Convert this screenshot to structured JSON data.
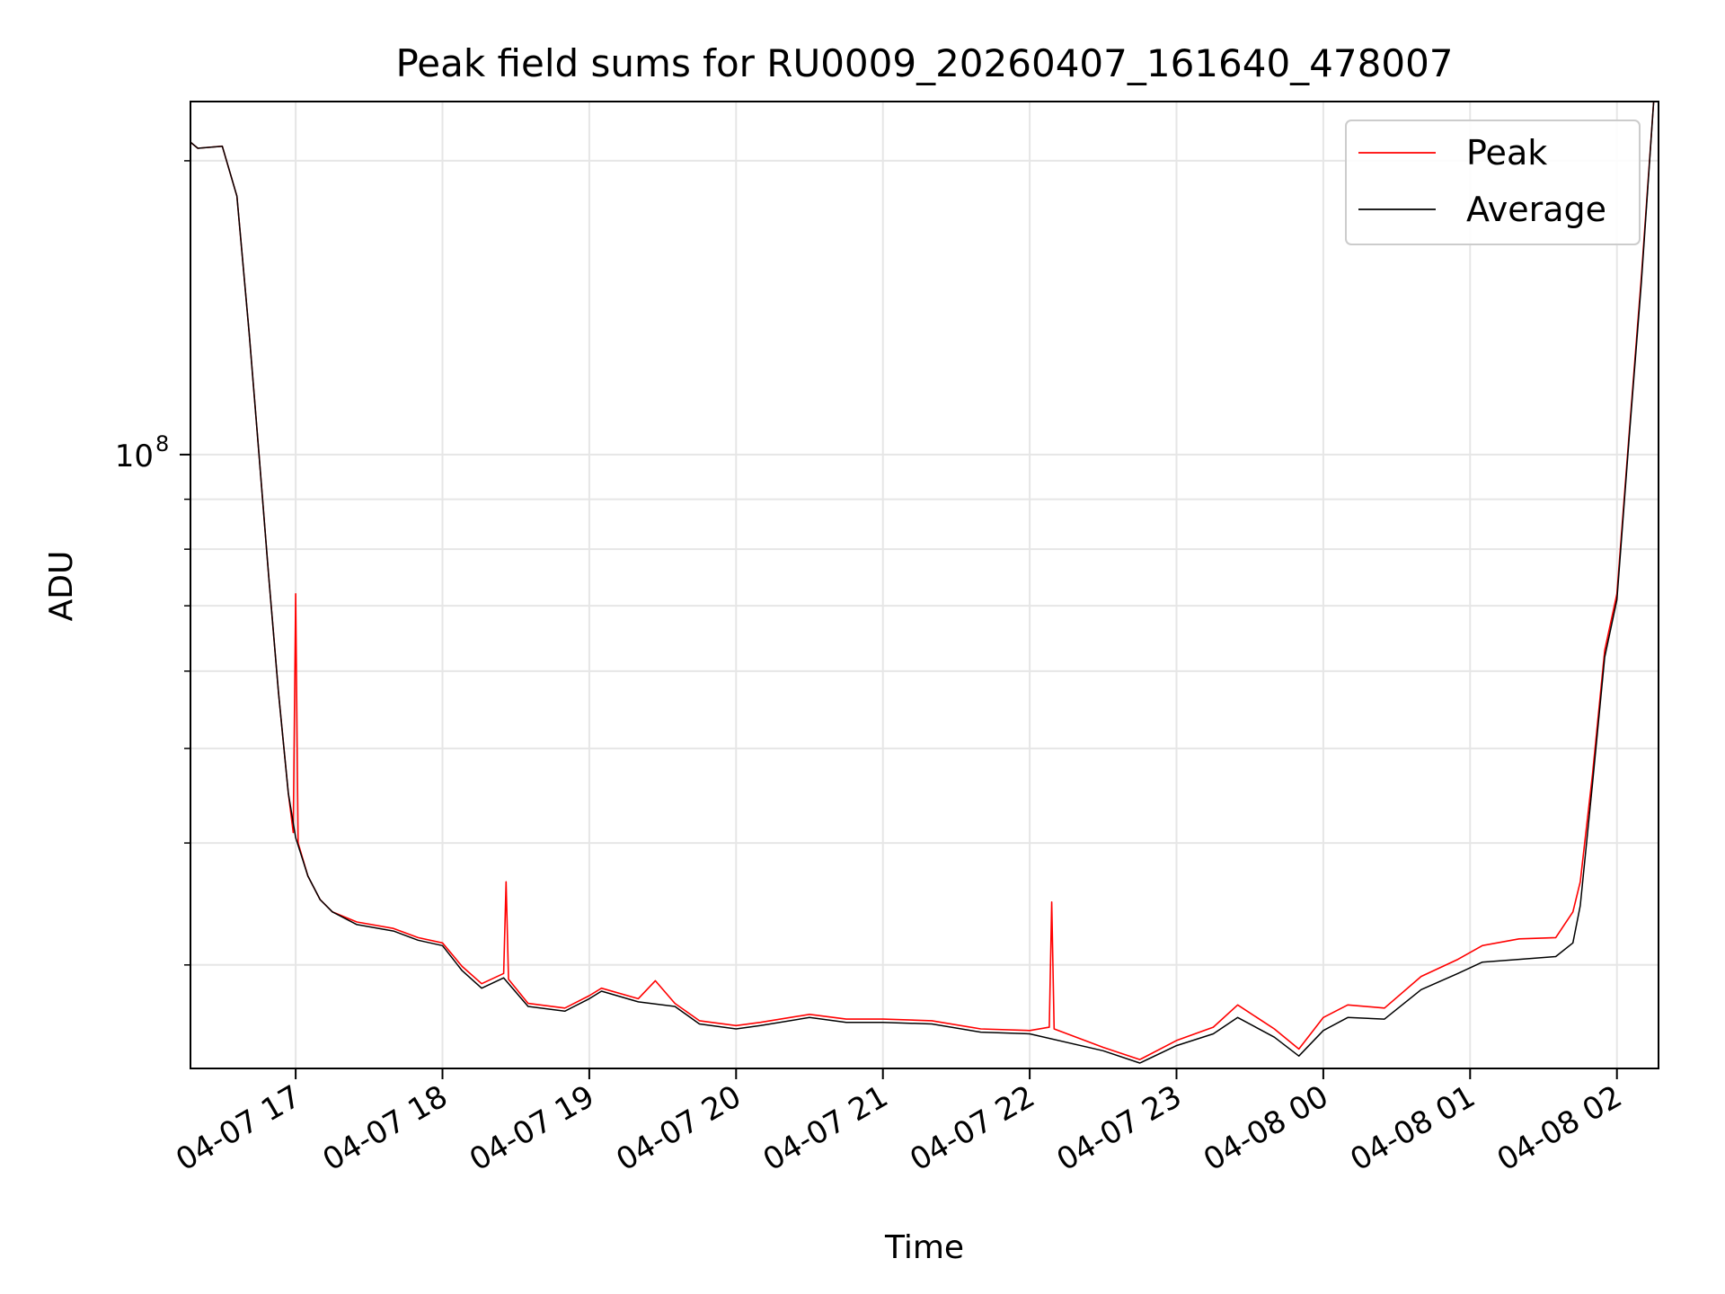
{
  "chart_data": {
    "type": "line",
    "title": "Peak field sums for RU0009_20260407_161640_478007",
    "xlabel": "Time",
    "ylabel": "ADU",
    "yscale": "log",
    "grid": true,
    "legend_placement": "top-right",
    "x_ticks": [
      "04-07 17",
      "04-07 18",
      "04-07 19",
      "04-07 20",
      "04-07 21",
      "04-07 22",
      "04-07 23",
      "04-08 00",
      "04-08 01",
      "04-08 02"
    ],
    "y_tick_labels": [
      {
        "base": "10",
        "exponent": "8"
      }
    ],
    "xlim": [
      "2026-04-07 16:17",
      "2026-04-08 02:17"
    ],
    "ylim": [
      23500000,
      230000000
    ],
    "series": [
      {
        "name": "Peak",
        "color": "#ff0000",
        "points": [
          [
            "2026-04-07 16:17",
            209000000
          ],
          [
            "2026-04-07 16:20",
            206000000
          ],
          [
            "2026-04-07 16:30",
            207000000
          ],
          [
            "2026-04-07 16:36",
            184000000
          ],
          [
            "2026-04-07 16:41",
            133000000
          ],
          [
            "2026-04-07 16:45",
            100000000
          ],
          [
            "2026-04-07 16:49",
            75000000
          ],
          [
            "2026-04-07 16:53",
            57000000
          ],
          [
            "2026-04-07 16:57",
            45000000
          ],
          [
            "2026-04-07 16:59",
            41000000
          ],
          [
            "2026-04-07 17:00",
            72000000
          ],
          [
            "2026-04-07 17:01",
            40000000
          ],
          [
            "2026-04-07 17:05",
            37000000
          ],
          [
            "2026-04-07 17:10",
            35000000
          ],
          [
            "2026-04-07 17:15",
            34000000
          ],
          [
            "2026-04-07 17:25",
            33200000
          ],
          [
            "2026-04-07 17:40",
            32700000
          ],
          [
            "2026-04-07 17:50",
            32000000
          ],
          [
            "2026-04-07 18:00",
            31600000
          ],
          [
            "2026-04-07 18:08",
            29900000
          ],
          [
            "2026-04-07 18:16",
            28700000
          ],
          [
            "2026-04-07 18:25",
            29400000
          ],
          [
            "2026-04-07 18:26",
            36500000
          ],
          [
            "2026-04-07 18:27",
            29000000
          ],
          [
            "2026-04-07 18:35",
            27400000
          ],
          [
            "2026-04-07 18:50",
            27100000
          ],
          [
            "2026-04-07 19:00",
            27900000
          ],
          [
            "2026-04-07 19:05",
            28400000
          ],
          [
            "2026-04-07 19:20",
            27700000
          ],
          [
            "2026-04-07 19:27",
            28900000
          ],
          [
            "2026-04-07 19:35",
            27400000
          ],
          [
            "2026-04-07 19:45",
            26300000
          ],
          [
            "2026-04-07 20:00",
            26000000
          ],
          [
            "2026-04-07 20:10",
            26200000
          ],
          [
            "2026-04-07 20:30",
            26700000
          ],
          [
            "2026-04-07 20:45",
            26400000
          ],
          [
            "2026-04-07 21:00",
            26400000
          ],
          [
            "2026-04-07 21:20",
            26300000
          ],
          [
            "2026-04-07 21:40",
            25800000
          ],
          [
            "2026-04-07 22:00",
            25700000
          ],
          [
            "2026-04-07 22:08",
            25900000
          ],
          [
            "2026-04-07 22:09",
            34800000
          ],
          [
            "2026-04-07 22:10",
            25800000
          ],
          [
            "2026-04-07 22:30",
            24700000
          ],
          [
            "2026-04-07 22:45",
            24000000
          ],
          [
            "2026-04-07 23:00",
            25100000
          ],
          [
            "2026-04-07 23:15",
            25900000
          ],
          [
            "2026-04-07 23:25",
            27300000
          ],
          [
            "2026-04-07 23:40",
            25800000
          ],
          [
            "2026-04-07 23:50",
            24600000
          ],
          [
            "2026-04-08 00:00",
            26500000
          ],
          [
            "2026-04-08 00:10",
            27300000
          ],
          [
            "2026-04-08 00:25",
            27100000
          ],
          [
            "2026-04-08 00:40",
            29200000
          ],
          [
            "2026-04-08 00:55",
            30400000
          ],
          [
            "2026-04-08 01:05",
            31400000
          ],
          [
            "2026-04-08 01:20",
            31900000
          ],
          [
            "2026-04-08 01:35",
            32000000
          ],
          [
            "2026-04-08 01:42",
            34000000
          ],
          [
            "2026-04-08 01:45",
            36500000
          ],
          [
            "2026-04-08 01:50",
            47000000
          ],
          [
            "2026-04-08 01:55",
            63000000
          ],
          [
            "2026-04-08 02:00",
            72000000
          ],
          [
            "2026-04-08 02:05",
            105000000
          ],
          [
            "2026-04-08 02:10",
            152000000
          ],
          [
            "2026-04-08 02:15",
            230000000
          ]
        ]
      },
      {
        "name": "Average",
        "color": "#000000",
        "points": [
          [
            "2026-04-07 16:17",
            209000000
          ],
          [
            "2026-04-07 16:20",
            206000000
          ],
          [
            "2026-04-07 16:30",
            207000000
          ],
          [
            "2026-04-07 16:36",
            184000000
          ],
          [
            "2026-04-07 16:41",
            133000000
          ],
          [
            "2026-04-07 16:45",
            100000000
          ],
          [
            "2026-04-07 16:49",
            75000000
          ],
          [
            "2026-04-07 16:53",
            57000000
          ],
          [
            "2026-04-07 16:57",
            45000000
          ],
          [
            "2026-04-07 17:00",
            40500000
          ],
          [
            "2026-04-07 17:05",
            37000000
          ],
          [
            "2026-04-07 17:10",
            35000000
          ],
          [
            "2026-04-07 17:15",
            34000000
          ],
          [
            "2026-04-07 17:25",
            33000000
          ],
          [
            "2026-04-07 17:40",
            32500000
          ],
          [
            "2026-04-07 17:50",
            31800000
          ],
          [
            "2026-04-07 18:00",
            31400000
          ],
          [
            "2026-04-07 18:08",
            29600000
          ],
          [
            "2026-04-07 18:16",
            28400000
          ],
          [
            "2026-04-07 18:25",
            29100000
          ],
          [
            "2026-04-07 18:35",
            27200000
          ],
          [
            "2026-04-07 18:50",
            26900000
          ],
          [
            "2026-04-07 19:00",
            27700000
          ],
          [
            "2026-04-07 19:05",
            28200000
          ],
          [
            "2026-04-07 19:20",
            27500000
          ],
          [
            "2026-04-07 19:35",
            27200000
          ],
          [
            "2026-04-07 19:45",
            26100000
          ],
          [
            "2026-04-07 20:00",
            25800000
          ],
          [
            "2026-04-07 20:10",
            26000000
          ],
          [
            "2026-04-07 20:30",
            26500000
          ],
          [
            "2026-04-07 20:45",
            26200000
          ],
          [
            "2026-04-07 21:00",
            26200000
          ],
          [
            "2026-04-07 21:20",
            26100000
          ],
          [
            "2026-04-07 21:40",
            25600000
          ],
          [
            "2026-04-07 22:00",
            25500000
          ],
          [
            "2026-04-07 22:30",
            24500000
          ],
          [
            "2026-04-07 22:45",
            23800000
          ],
          [
            "2026-04-07 23:00",
            24800000
          ],
          [
            "2026-04-07 23:15",
            25500000
          ],
          [
            "2026-04-07 23:25",
            26500000
          ],
          [
            "2026-04-07 23:40",
            25300000
          ],
          [
            "2026-04-07 23:50",
            24200000
          ],
          [
            "2026-04-08 00:00",
            25700000
          ],
          [
            "2026-04-08 00:10",
            26500000
          ],
          [
            "2026-04-08 00:25",
            26400000
          ],
          [
            "2026-04-08 00:40",
            28300000
          ],
          [
            "2026-04-08 00:55",
            29400000
          ],
          [
            "2026-04-08 01:05",
            30200000
          ],
          [
            "2026-04-08 01:20",
            30400000
          ],
          [
            "2026-04-08 01:35",
            30600000
          ],
          [
            "2026-04-08 01:42",
            31600000
          ],
          [
            "2026-04-08 01:45",
            34500000
          ],
          [
            "2026-04-08 01:50",
            46000000
          ],
          [
            "2026-04-08 01:55",
            62000000
          ],
          [
            "2026-04-08 02:00",
            71000000
          ],
          [
            "2026-04-08 02:05",
            104000000
          ],
          [
            "2026-04-08 02:10",
            150000000
          ],
          [
            "2026-04-08 02:15",
            230000000
          ]
        ]
      }
    ]
  }
}
